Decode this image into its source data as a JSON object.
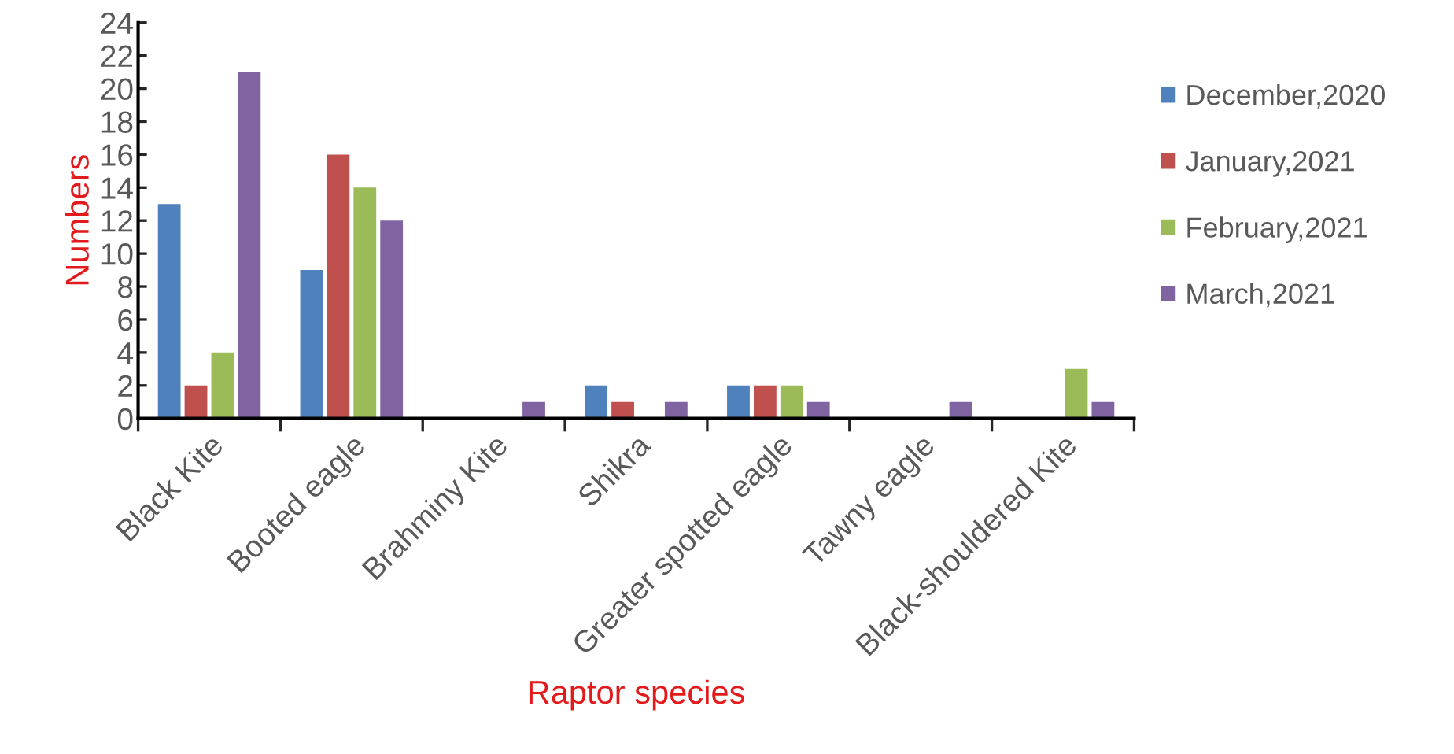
{
  "chart_data": {
    "type": "bar",
    "xlabel": "Raptor species",
    "ylabel": "Numbers",
    "categories": [
      "Black Kite",
      "Booted eagle",
      "Brahminy Kite",
      "Shikra",
      "Greater spotted eagle",
      "Tawny eagle",
      "Black-shouldered Kite"
    ],
    "series": [
      {
        "name": "December,2020",
        "color": "#4f81bd",
        "values": [
          13,
          9,
          0,
          2,
          2,
          0,
          0
        ]
      },
      {
        "name": "January,2021",
        "color": "#c0504d",
        "values": [
          2,
          16,
          0,
          1,
          2,
          0,
          0
        ]
      },
      {
        "name": "February,2021",
        "color": "#9bbb59",
        "values": [
          4,
          14,
          0,
          0,
          2,
          0,
          3
        ]
      },
      {
        "name": "March,2021",
        "color": "#8064a2",
        "values": [
          21,
          12,
          1,
          1,
          1,
          1,
          1
        ]
      }
    ],
    "ylim": [
      0,
      24
    ],
    "yticks": [
      0,
      2,
      4,
      6,
      8,
      10,
      12,
      14,
      16,
      18,
      20,
      22,
      24
    ],
    "grid": false,
    "legend": "right"
  }
}
